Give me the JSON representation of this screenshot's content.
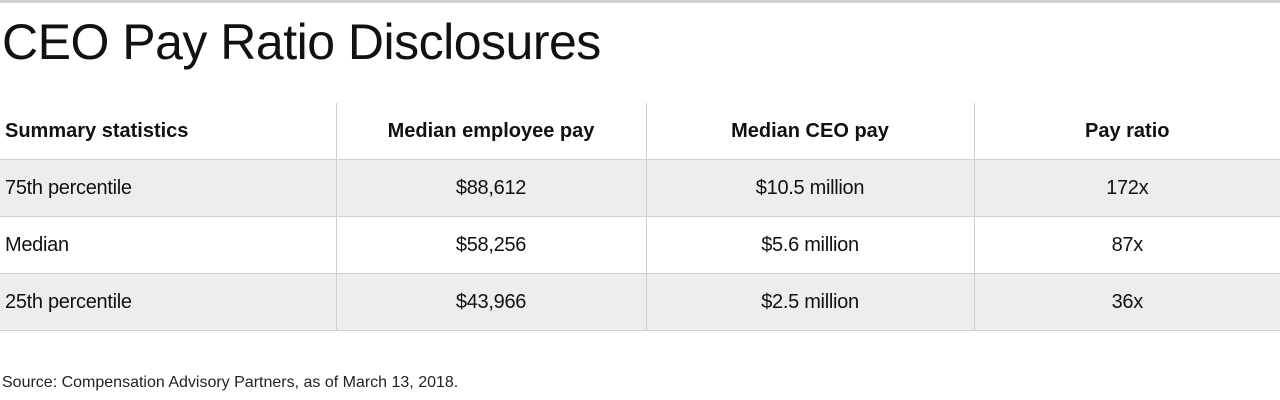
{
  "title": "CEO Pay Ratio Disclosures",
  "source": "Source: Compensation Advisory Partners, as of March 13, 2018.",
  "colors": {
    "row_shade": "#eceeed",
    "rule": "#cfcfcf",
    "text": "#111111"
  },
  "chart_data": {
    "type": "table",
    "title": "CEO Pay Ratio Disclosures",
    "columns": [
      "Summary statistics",
      "Median employee pay",
      "Median CEO pay",
      "Pay ratio"
    ],
    "rows": [
      [
        "75th percentile",
        "$88,612",
        "$10.5 million",
        "172x"
      ],
      [
        "Median",
        "$58,256",
        "$5.6 million",
        "87x"
      ],
      [
        "25th percentile",
        "$43,966",
        "$2.5 million",
        "36x"
      ]
    ]
  }
}
